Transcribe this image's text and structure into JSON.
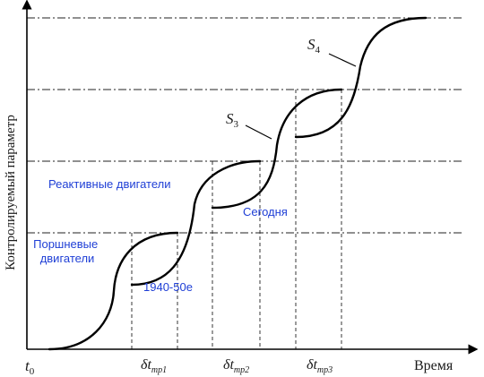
{
  "diagram": {
    "y_axis_label": "Контролируемый параметр",
    "x_axis_label": "Время",
    "t0": {
      "base": "t",
      "sub": "0"
    },
    "labels": {
      "piston": [
        "Поршневые",
        "двигатели"
      ],
      "year": "1940-50е",
      "jet": "Реактивные двигатели",
      "today": "Сегодня"
    },
    "s_curves": [
      {
        "base": "S",
        "sub": "3"
      },
      {
        "base": "S",
        "sub": "4"
      }
    ],
    "transitions": [
      {
        "base": "δt",
        "sub": "тр1"
      },
      {
        "base": "δt",
        "sub": "тр2"
      },
      {
        "base": "δt",
        "sub": "тр3"
      }
    ]
  }
}
